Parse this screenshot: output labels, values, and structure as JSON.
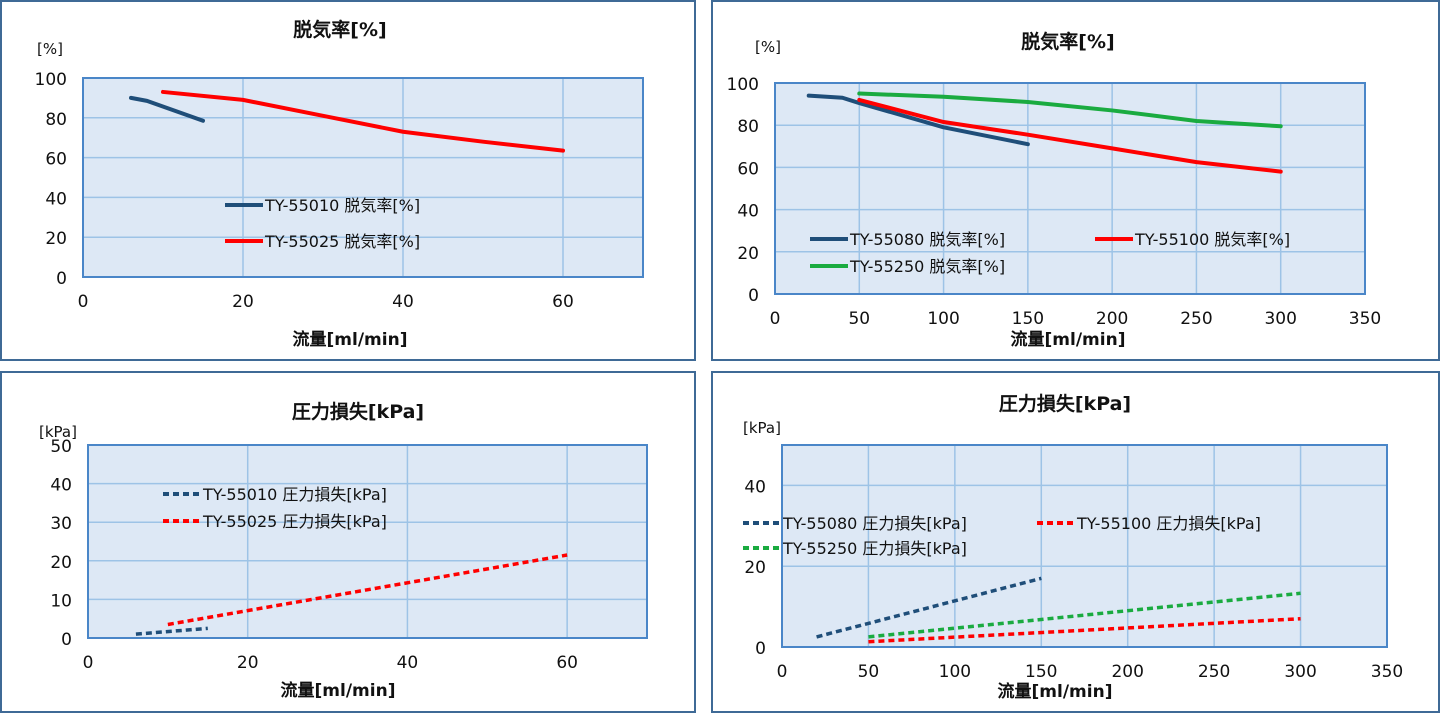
{
  "colors": {
    "plot_bg": "#dde8f5",
    "grid": "#9dc3e6",
    "plot_border": "#4a86c8",
    "panel_border": "#3f6a96"
  },
  "chart_data": [
    {
      "type": "line",
      "title": "脱気率[%]",
      "ylabel": "[%]",
      "xlabel": "流量[ml/min]",
      "xlim": [
        0,
        70
      ],
      "ylim": [
        0,
        100
      ],
      "xticks": [
        0,
        20,
        40,
        60
      ],
      "yticks": [
        0,
        20,
        40,
        60,
        80,
        100
      ],
      "grid": true,
      "legend_position": "center",
      "series": [
        {
          "name": "TY-55010 脱気率[%]",
          "color": "#1f4e79",
          "dashed": false,
          "x": [
            6,
            8,
            15
          ],
          "y": [
            90,
            88.5,
            78.5
          ]
        },
        {
          "name": "TY-55025 脱気率[%]",
          "color": "#ff0000",
          "dashed": false,
          "x": [
            10,
            20,
            30,
            40,
            50,
            60
          ],
          "y": [
            93,
            89,
            81,
            73,
            68,
            63.5
          ]
        }
      ]
    },
    {
      "type": "line",
      "title": "脱気率[%]",
      "ylabel": "[%]",
      "xlabel": "流量[ml/min]",
      "xlim": [
        0,
        350
      ],
      "ylim": [
        0,
        100
      ],
      "xticks": [
        0,
        50,
        100,
        150,
        200,
        250,
        300,
        350
      ],
      "yticks": [
        0,
        20,
        40,
        60,
        80,
        100
      ],
      "grid": true,
      "legend_position": "bottom",
      "series": [
        {
          "name": "TY-55080 脱気率[%]",
          "color": "#1f4e79",
          "dashed": false,
          "x": [
            20,
            40,
            50,
            100,
            150
          ],
          "y": [
            94,
            93,
            90.5,
            79,
            71
          ]
        },
        {
          "name": "TY-55100 脱気率[%]",
          "color": "#ff0000",
          "dashed": false,
          "x": [
            50,
            100,
            150,
            200,
            250,
            300
          ],
          "y": [
            92,
            81.5,
            75.5,
            69,
            62.5,
            58
          ]
        },
        {
          "name": "TY-55250 脱気率[%]",
          "color": "#1aab40",
          "dashed": false,
          "x": [
            50,
            100,
            150,
            200,
            250,
            300
          ],
          "y": [
            95,
            93.5,
            91,
            87,
            82,
            79.5
          ]
        }
      ]
    },
    {
      "type": "line",
      "title": "圧力損失[kPa]",
      "ylabel": "[kPa]",
      "xlabel": "流量[ml/min]",
      "xlim": [
        0,
        70
      ],
      "ylim": [
        0,
        50
      ],
      "xticks": [
        0,
        20,
        40,
        60
      ],
      "yticks": [
        0,
        10,
        20,
        30,
        40,
        50
      ],
      "grid": true,
      "legend_position": "top-left",
      "series": [
        {
          "name": "TY-55010 圧力損失[kPa]",
          "color": "#1f4e79",
          "dashed": true,
          "x": [
            6,
            15
          ],
          "y": [
            1,
            2.5
          ]
        },
        {
          "name": "TY-55025 圧力損失[kPa]",
          "color": "#ff0000",
          "dashed": true,
          "x": [
            10,
            60
          ],
          "y": [
            3.5,
            21.5
          ]
        }
      ]
    },
    {
      "type": "line",
      "title": "圧力損失[kPa]",
      "ylabel": "[kPa]",
      "xlabel": "流量[ml/min]",
      "xlim": [
        0,
        350
      ],
      "ylim": [
        0,
        50
      ],
      "xticks": [
        0,
        50,
        100,
        150,
        200,
        250,
        300,
        350
      ],
      "yticks": [
        0,
        20,
        40
      ],
      "grid": true,
      "legend_position": "left",
      "series": [
        {
          "name": "TY-55080 圧力損失[kPa]",
          "color": "#1f4e79",
          "dashed": true,
          "x": [
            20,
            150
          ],
          "y": [
            2.5,
            17
          ]
        },
        {
          "name": "TY-55100 圧力損失[kPa]",
          "color": "#ff0000",
          "dashed": true,
          "x": [
            50,
            300
          ],
          "y": [
            1.3,
            7
          ]
        },
        {
          "name": "TY-55250 圧力損失[kPa]",
          "color": "#1aab40",
          "dashed": true,
          "x": [
            50,
            300
          ],
          "y": [
            2.5,
            13.3
          ]
        }
      ]
    }
  ]
}
